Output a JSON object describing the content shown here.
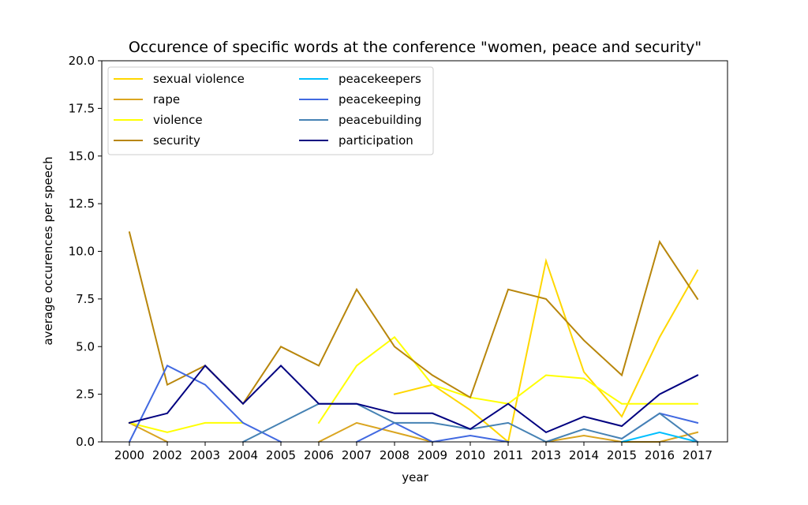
{
  "chart_data": {
    "type": "line",
    "title": "Occurence of specific words at the conference \"women, peace and security\"",
    "xlabel": "year",
    "ylabel": "average occurences per speech",
    "categories": [
      "2000",
      "2002",
      "2003",
      "2004",
      "2005",
      "2006",
      "2007",
      "2008",
      "2009",
      "2010",
      "2011",
      "2013",
      "2014",
      "2015",
      "2016",
      "2017"
    ],
    "ylim": [
      0,
      20
    ],
    "yticks": [
      "0.0",
      "2.5",
      "5.0",
      "7.5",
      "10.0",
      "12.5",
      "15.0",
      "17.5",
      "20.0"
    ],
    "grid": false,
    "legend_position": "top-left",
    "series": [
      {
        "name": "sexual violence",
        "color": "#ffd700",
        "values": [
          1.0,
          null,
          null,
          null,
          null,
          null,
          null,
          2.5,
          3.0,
          1.67,
          0.0,
          9.5,
          3.67,
          1.33,
          5.5,
          9.0
        ]
      },
      {
        "name": "rape",
        "color": "#daa520",
        "values": [
          1.0,
          0.0,
          null,
          null,
          null,
          0.0,
          1.0,
          0.5,
          0.0,
          null,
          null,
          0.0,
          0.33,
          0.0,
          0.0,
          0.5
        ]
      },
      {
        "name": "violence",
        "color": "#ffff00",
        "values": [
          1.0,
          0.5,
          1.0,
          1.0,
          null,
          1.0,
          4.0,
          5.5,
          3.0,
          2.33,
          2.0,
          3.5,
          3.33,
          2.0,
          2.0,
          2.0
        ]
      },
      {
        "name": "security",
        "color": "#b8860b",
        "values": [
          11.0,
          3.0,
          4.0,
          2.0,
          5.0,
          4.0,
          8.0,
          5.0,
          3.5,
          2.33,
          8.0,
          7.5,
          5.33,
          3.5,
          10.5,
          7.5
        ]
      },
      {
        "name": "peacekeepers",
        "color": "#00bfff",
        "values": [
          null,
          null,
          null,
          null,
          null,
          null,
          null,
          null,
          null,
          null,
          null,
          null,
          null,
          0.0,
          0.5,
          0.0
        ]
      },
      {
        "name": "peacekeeping",
        "color": "#4169e1",
        "values": [
          0.0,
          4.0,
          3.0,
          1.0,
          0.0,
          null,
          0.0,
          1.0,
          0.0,
          0.33,
          0.0,
          null,
          null,
          0.17,
          1.5,
          1.0
        ]
      },
      {
        "name": "peacebuilding",
        "color": "#4682b4",
        "values": [
          null,
          null,
          null,
          0.0,
          1.0,
          2.0,
          2.0,
          1.0,
          1.0,
          0.67,
          1.0,
          0.0,
          0.67,
          0.17,
          1.5,
          0.0
        ]
      },
      {
        "name": "participation",
        "color": "#000080",
        "values": [
          1.0,
          1.5,
          4.0,
          2.0,
          4.0,
          2.0,
          2.0,
          1.5,
          1.5,
          0.67,
          2.0,
          0.5,
          1.33,
          0.83,
          2.5,
          3.5
        ]
      }
    ]
  }
}
